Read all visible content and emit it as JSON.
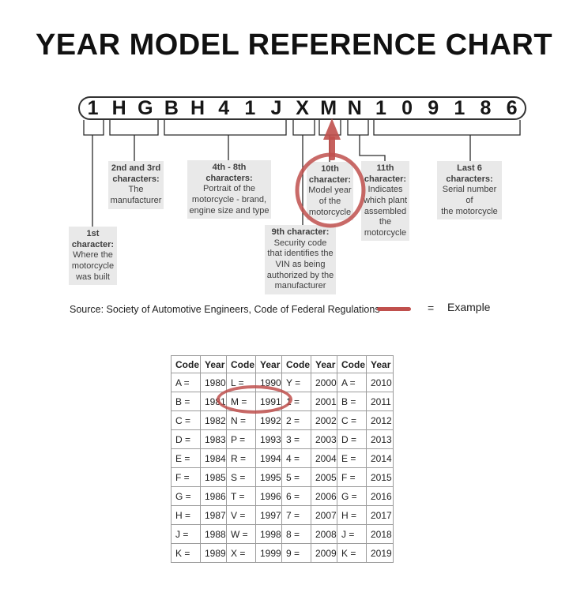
{
  "colors": {
    "accent_red": "#c0504d",
    "callout_bg": "#e9e9e9"
  },
  "title": "YEAR MODEL REFERENCE CHART",
  "vin": {
    "characters": [
      "1",
      "H",
      "G",
      "B",
      "H",
      "4",
      "1",
      "J",
      "X",
      "M",
      "N",
      "1",
      "0",
      "9",
      "1",
      "8",
      "6"
    ],
    "highlighted_character": "M"
  },
  "callouts": {
    "first": {
      "heading": "1st\ncharacter:",
      "body": "Where the\nmotorcycle\nwas built"
    },
    "second_third": {
      "heading": "2nd and 3rd\ncharacters:",
      "body": "The\nmanufacturer"
    },
    "fourth_eighth": {
      "heading": "4th - 8th\ncharacters:",
      "body": "Portrait of the\nmotorcycle - brand,\nengine size and type"
    },
    "ninth": {
      "heading": "9th character:",
      "body": "Security code\nthat identifies the\nVIN as being\nauthorized by the\nmanufacturer"
    },
    "tenth": {
      "heading": "10th\ncharacter:",
      "body": "Model year\nof the\nmotorcycle"
    },
    "eleventh": {
      "heading": "11th\ncharacter:",
      "body": "Indicates\nwhich plant\nassembled\nthe\nmotorcycle"
    },
    "last6": {
      "heading": "Last 6\ncharacters:",
      "body": "Serial number of\nthe motorcycle"
    }
  },
  "source": {
    "text": "Source:  Society of Automotive Engineers, Code of Federal Regulations"
  },
  "legend": {
    "equals_sign": "=",
    "label": "Example"
  },
  "table": {
    "headers": [
      "Code",
      "Year",
      "Code",
      "Year",
      "Code",
      "Year",
      "Code",
      "Year"
    ],
    "rows": [
      [
        "A =",
        "1980",
        "L =",
        "1990",
        "Y =",
        "2000",
        "A =",
        "2010"
      ],
      [
        "B =",
        "1981",
        "M =",
        "1991",
        "1 =",
        "2001",
        "B =",
        "2011"
      ],
      [
        "C =",
        "1982",
        "N =",
        "1992",
        "2 =",
        "2002",
        "C =",
        "2012"
      ],
      [
        "D =",
        "1983",
        "P =",
        "1993",
        "3 =",
        "2003",
        "D =",
        "2013"
      ],
      [
        "E =",
        "1984",
        "R =",
        "1994",
        "4 =",
        "2004",
        "E =",
        "2014"
      ],
      [
        "F =",
        "1985",
        "S =",
        "1995",
        "5 =",
        "2005",
        "F =",
        "2015"
      ],
      [
        "G =",
        "1986",
        "T =",
        "1996",
        "6 =",
        "2006",
        "G =",
        "2016"
      ],
      [
        "H =",
        "1987",
        "V =",
        "1997",
        "7 =",
        "2007",
        "H =",
        "2017"
      ],
      [
        "J =",
        "1988",
        "W =",
        "1998",
        "8 =",
        "2008",
        "J =",
        "2018"
      ],
      [
        "K =",
        "1989",
        "X =",
        "1999",
        "9 =",
        "2009",
        "K =",
        "2019"
      ]
    ],
    "highlighted_cells": [
      "M =",
      "1991"
    ]
  }
}
